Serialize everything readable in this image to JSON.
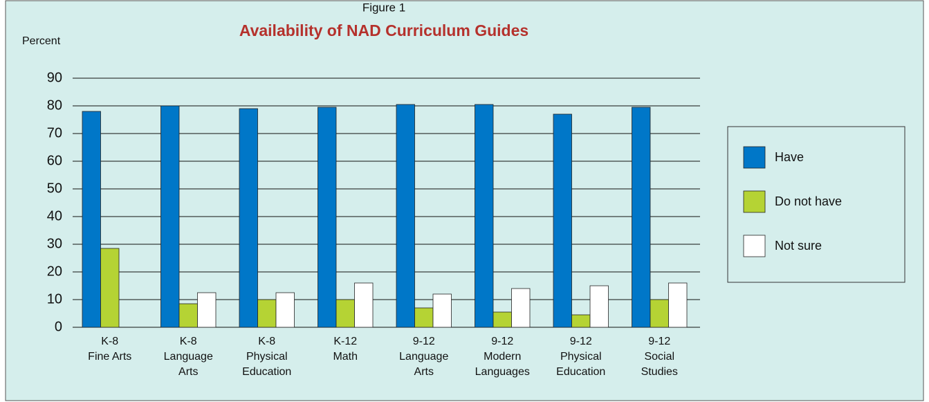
{
  "chart_data": {
    "type": "bar",
    "subtitle": "Figure 1",
    "title": "Availability of NAD Curriculum Guides",
    "y_label": "Percent",
    "categories": [
      [
        "K-8",
        "Fine Arts"
      ],
      [
        "K-8",
        "Language",
        "Arts"
      ],
      [
        "K-8",
        "Physical",
        "Education"
      ],
      [
        "K-12",
        "Math"
      ],
      [
        "9-12",
        "Language",
        "Arts"
      ],
      [
        "9-12",
        "Modern",
        "Languages"
      ],
      [
        "9-12",
        "Physical",
        "Education"
      ],
      [
        "9-12",
        "Social",
        "Studies"
      ]
    ],
    "series": [
      {
        "name": "Have",
        "color": "#0077c8",
        "values": [
          78,
          80,
          79,
          79.5,
          80.5,
          80.5,
          77,
          79.5
        ]
      },
      {
        "name": "Do not have",
        "color": "#b5d334",
        "values": [
          28.5,
          8.5,
          10,
          10,
          7,
          5.5,
          4.5,
          10
        ]
      },
      {
        "name": "Not sure",
        "color": "#ffffff",
        "values": [
          null,
          12.5,
          12.5,
          16,
          12,
          14,
          15,
          16
        ]
      }
    ],
    "ylim": [
      0,
      90
    ],
    "yticks": [
      0,
      10,
      20,
      30,
      40,
      50,
      60,
      70,
      80,
      90
    ],
    "grid": true,
    "legend": "right"
  }
}
